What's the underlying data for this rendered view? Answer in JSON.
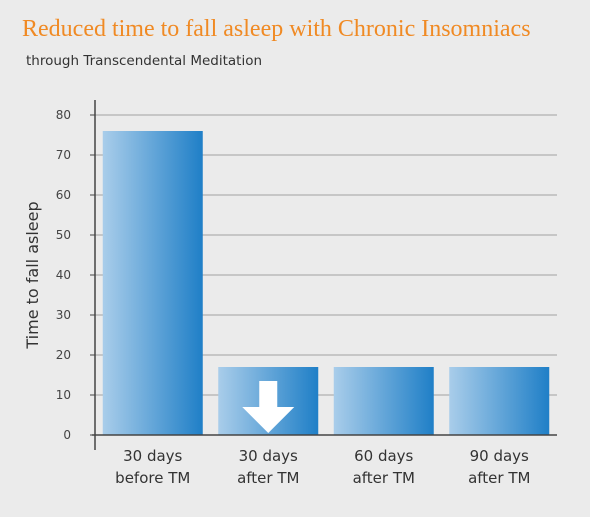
{
  "header": {
    "title": "Reduced time to fall asleep with Chronic Insomniacs",
    "subtitle": "through Transcendental Meditation"
  },
  "colors": {
    "title": "#f08a24",
    "bar_light": "#a9cdea",
    "bar_dark": "#1f7fc7",
    "grid": "#a0a0a0",
    "arrow": "#ffffff"
  },
  "chart_data": {
    "type": "bar",
    "title": "Reduced time to fall asleep with Chronic Insomniacs",
    "subtitle": "through Transcendental Meditation",
    "ylabel": "Time to fall asleep",
    "xlabel": "",
    "ylim": [
      0,
      80
    ],
    "yticks": [
      "0",
      "10",
      "20",
      "30",
      "40",
      "50",
      "60",
      "70",
      "80"
    ],
    "categories": [
      [
        "30 days",
        "before TM"
      ],
      [
        "30 days",
        "after TM"
      ],
      [
        "60 days",
        "after TM"
      ],
      [
        "90 days",
        "after TM"
      ]
    ],
    "values": [
      76,
      17,
      17,
      17
    ],
    "grid": true,
    "annotation": {
      "icon": "down-arrow-icon",
      "category_index": 1
    }
  }
}
